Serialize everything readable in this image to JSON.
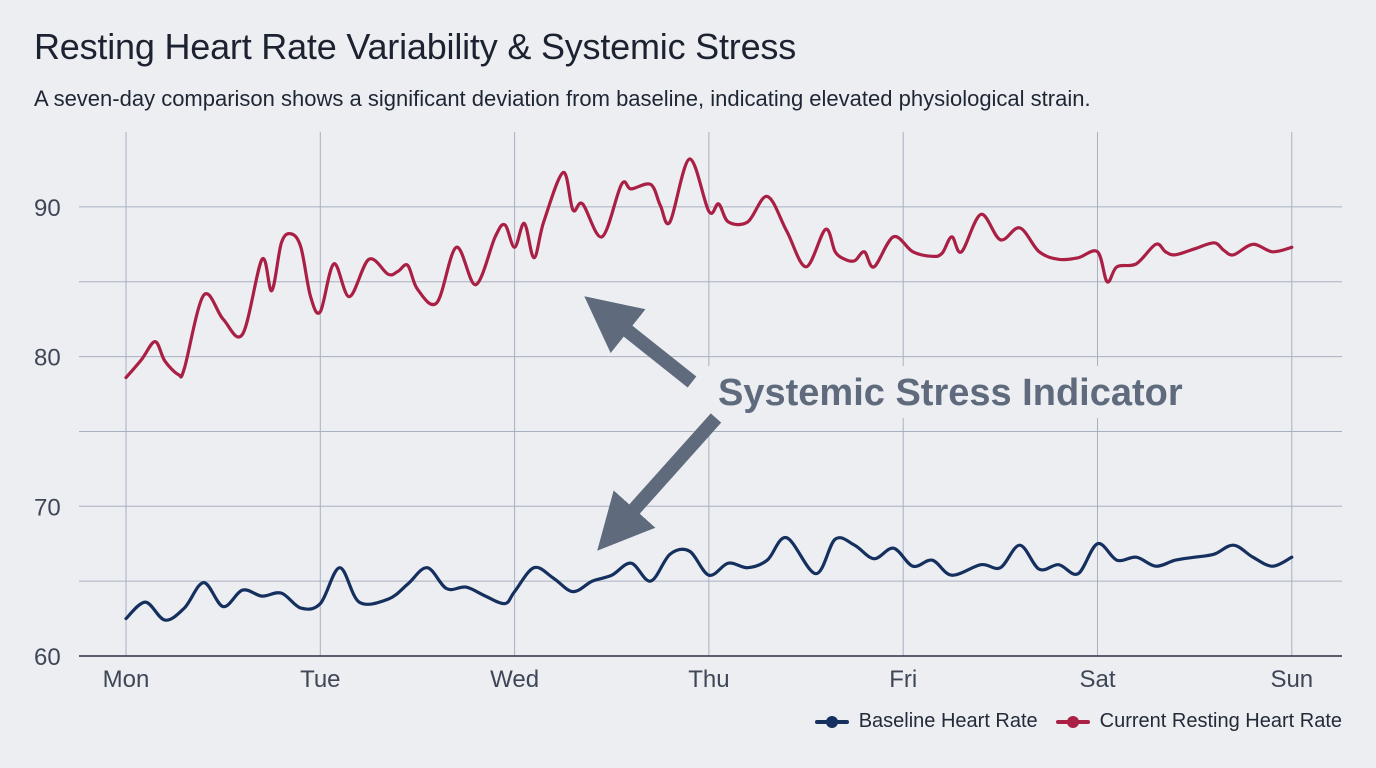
{
  "title": "Resting Heart Rate Variability & Systemic Stress",
  "subtitle": "A seven-day comparison shows a significant deviation from baseline, indicating elevated physiological strain.",
  "annotation": "Systemic Stress Indicator",
  "colors": {
    "baseline": "#15305e",
    "current": "#aa1f44",
    "grid": "#a9b0c0",
    "annotation": "#5f6b7d",
    "background": "#eceef2"
  },
  "chart_data": {
    "type": "line",
    "title": "Resting Heart Rate Variability & Systemic Stress",
    "subtitle": "A seven-day comparison shows a significant deviation from baseline, indicating elevated physiological strain.",
    "xlabel": "",
    "ylabel": "",
    "categories": [
      "Mon",
      "Tue",
      "Wed",
      "Thu",
      "Fri",
      "Sat",
      "Sun"
    ],
    "ylim": [
      60,
      95
    ],
    "yticks": [
      60,
      70,
      80,
      90
    ],
    "grid": true,
    "legend_position": "bottom-right",
    "annotation": "Systemic Stress Indicator",
    "series": [
      {
        "name": "Baseline Heart Rate",
        "color": "#15305e",
        "x": [
          0,
          0.1,
          0.2,
          0.3,
          0.4,
          0.5,
          0.6,
          0.7,
          0.8,
          0.9,
          1.0,
          1.1,
          1.2,
          1.35,
          1.45,
          1.55,
          1.65,
          1.75,
          1.85,
          1.95,
          2.0,
          2.1,
          2.2,
          2.3,
          2.4,
          2.5,
          2.6,
          2.7,
          2.8,
          2.9,
          3.0,
          3.1,
          3.2,
          3.3,
          3.4,
          3.55,
          3.65,
          3.75,
          3.85,
          3.95,
          4.05,
          4.15,
          4.25,
          4.4,
          4.5,
          4.6,
          4.7,
          4.8,
          4.9,
          5.0,
          5.1,
          5.2,
          5.3,
          5.4,
          5.5,
          5.6,
          5.7,
          5.8,
          5.9,
          6.0
        ],
        "values": [
          62.5,
          63.6,
          62.4,
          63.2,
          64.9,
          63.3,
          64.4,
          64.0,
          64.2,
          63.2,
          63.5,
          65.9,
          63.6,
          63.8,
          64.8,
          65.9,
          64.5,
          64.6,
          64.0,
          63.5,
          64.3,
          65.9,
          65.2,
          64.3,
          65.0,
          65.4,
          66.2,
          65.0,
          66.8,
          67.0,
          65.4,
          66.2,
          65.9,
          66.4,
          67.9,
          65.5,
          67.8,
          67.4,
          66.5,
          67.2,
          66.0,
          66.4,
          65.4,
          66.1,
          65.9,
          67.4,
          65.8,
          66.1,
          65.5,
          67.5,
          66.4,
          66.6,
          66.0,
          66.4,
          66.6,
          66.8,
          67.4,
          66.6,
          66.0,
          66.6
        ]
      },
      {
        "name": "Current Resting Heart Rate",
        "color": "#aa1f44",
        "x": [
          0,
          0.08,
          0.15,
          0.2,
          0.27,
          0.3,
          0.4,
          0.5,
          0.6,
          0.7,
          0.75,
          0.8,
          0.85,
          0.9,
          0.95,
          1.0,
          1.07,
          1.15,
          1.25,
          1.35,
          1.4,
          1.45,
          1.5,
          1.6,
          1.7,
          1.8,
          1.9,
          1.95,
          2.0,
          2.05,
          2.1,
          2.15,
          2.25,
          2.3,
          2.35,
          2.45,
          2.55,
          2.6,
          2.7,
          2.75,
          2.8,
          2.9,
          3.0,
          3.05,
          3.1,
          3.2,
          3.3,
          3.4,
          3.5,
          3.6,
          3.65,
          3.7,
          3.75,
          3.8,
          3.85,
          3.95,
          4.05,
          4.15,
          4.2,
          4.25,
          4.3,
          4.4,
          4.5,
          4.6,
          4.7,
          4.8,
          4.9,
          5.0,
          5.05,
          5.1,
          5.2,
          5.3,
          5.35,
          5.4,
          5.5,
          5.6,
          5.65,
          5.7,
          5.8,
          5.9,
          6.0
        ],
        "values": [
          78.6,
          79.8,
          81.0,
          79.7,
          78.8,
          79.2,
          84.1,
          82.5,
          81.5,
          86.5,
          84.4,
          87.6,
          88.2,
          87.3,
          84.0,
          83.0,
          86.2,
          84.0,
          86.5,
          85.5,
          85.7,
          86.1,
          84.5,
          83.6,
          87.3,
          84.8,
          88.0,
          88.8,
          87.3,
          88.9,
          86.6,
          89.0,
          92.3,
          89.8,
          90.2,
          88.0,
          91.5,
          91.2,
          91.5,
          90.1,
          89.0,
          93.2,
          89.7,
          90.2,
          89.0,
          89.0,
          90.7,
          88.4,
          86.0,
          88.5,
          87.0,
          86.5,
          86.4,
          87.0,
          86.0,
          88.0,
          87.0,
          86.7,
          86.9,
          88.0,
          87.0,
          89.5,
          87.8,
          88.6,
          87.0,
          86.5,
          86.6,
          87.0,
          85.0,
          86.0,
          86.2,
          87.5,
          87.0,
          86.8,
          87.2,
          87.6,
          87.1,
          86.8,
          87.5,
          87.0,
          87.3
        ]
      }
    ]
  }
}
